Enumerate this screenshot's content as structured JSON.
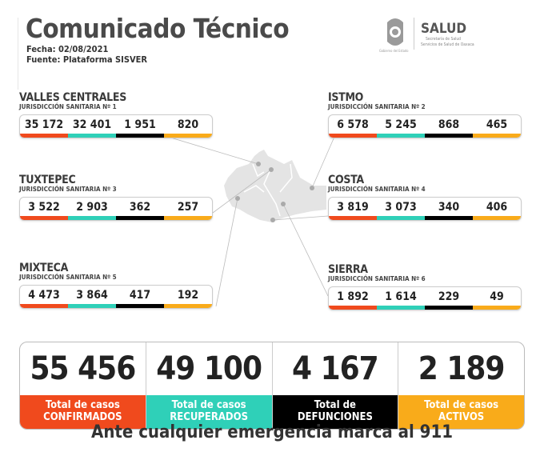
{
  "header": {
    "title": "Comunicado Técnico",
    "date": "Fecha: 02/08/2021",
    "source": "Fuente: Plataforma SISVER"
  },
  "logo": {
    "brand": "SALUD",
    "line1": "Secretaría de Salud",
    "line2": "Servicios de Salud de Oaxaca",
    "gov": "Gobierno del Estado"
  },
  "colors": {
    "confirmados": "#f04a1d",
    "recuperados": "#2fd0b8",
    "defunciones": "#000000",
    "activos": "#f9ab1a"
  },
  "regions": [
    {
      "name": "VALLES CENTRALES",
      "sub": "JURISDICCIÓN SANITARIA Nº 1",
      "values": [
        "35 172",
        "32 401",
        "1 951",
        "820"
      ]
    },
    {
      "name": "ISTMO",
      "sub": "JURISDICCIÓN SANITARIA Nº 2",
      "values": [
        "6 578",
        "5 245",
        "868",
        "465"
      ]
    },
    {
      "name": "TUXTEPEC",
      "sub": "JURISDICCIÓN SANITARIA Nº 3",
      "values": [
        "3 522",
        "2 903",
        "362",
        "257"
      ]
    },
    {
      "name": "COSTA",
      "sub": "JURISDICCIÓN SANITARIA Nº 4",
      "values": [
        "3 819",
        "3 073",
        "340",
        "406"
      ]
    },
    {
      "name": "MIXTECA",
      "sub": "JURISDICCIÓN SANITARIA Nº 5",
      "values": [
        "4 473",
        "3 864",
        "417",
        "192"
      ]
    },
    {
      "name": "SIERRA",
      "sub": "JURISDICCIÓN SANITARIA Nº 6",
      "values": [
        "1 892",
        "1 614",
        "229",
        "49"
      ]
    }
  ],
  "totals": [
    {
      "value": "55 456",
      "l1": "Total de casos",
      "l2": "CONFIRMADOS"
    },
    {
      "value": "49 100",
      "l1": "Total de casos",
      "l2": "RECUPERADOS"
    },
    {
      "value": "4 167",
      "l1": "Total de",
      "l2": "DEFUNCIONES"
    },
    {
      "value": "2 189",
      "l1": "Total de casos",
      "l2": "ACTIVOS"
    }
  ],
  "footer": "Ante cualquier emergencia marca al 911"
}
